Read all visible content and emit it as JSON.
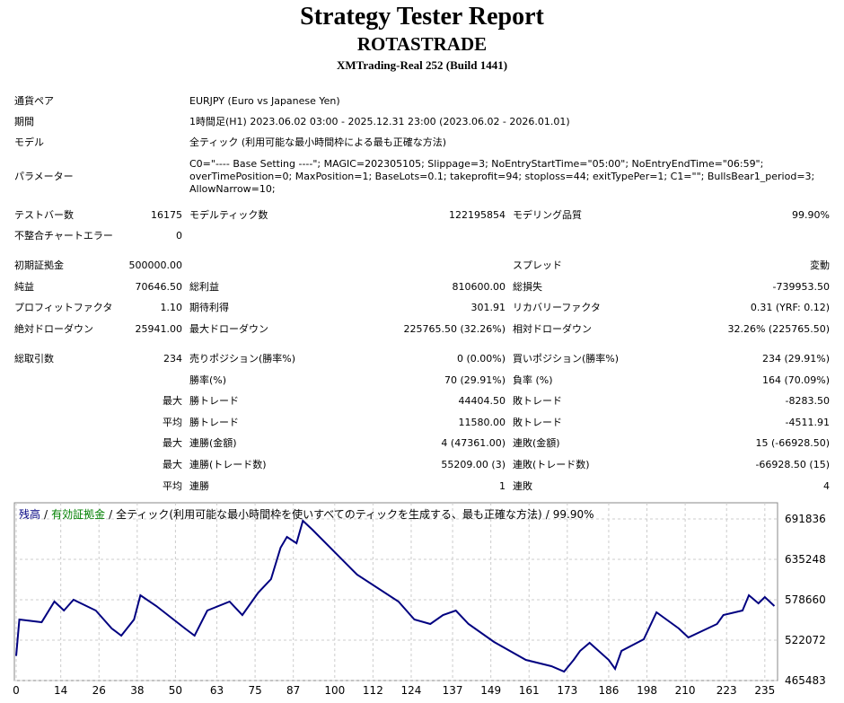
{
  "header": {
    "title": "Strategy Tester Report",
    "name": "ROTASTRADE",
    "server": "XMTrading-Real 252 (Build 1441)"
  },
  "info": [
    [
      "通貨ペア",
      [
        "EURJPY (Euro vs Japanese Yen)"
      ]
    ],
    [
      "期間",
      [
        "1時間足(H1) 2023.06.02 03:00 - 2025.12.31 23:00 (2023.06.02 - 2026.01.01)"
      ]
    ],
    [
      "モデル",
      [
        "全ティック (利用可能な最小時間枠による最も正確な方法)"
      ]
    ],
    [
      "パラメーター",
      [
        "C0=\"---- Base Setting ----\"; MAGIC=202305105; Slippage=3; NoEntryStartTime=\"05:00\"; NoEntryEndTime=\"06:59\";",
        "overTimePosition=0; MaxPosition=1; BaseLots=0.1; takeprofit=94; stoploss=44; exitTypePer=1; C1=\"\"; BullsBear1_period=3;",
        "AllowNarrow=10;"
      ]
    ]
  ],
  "table": {
    "rows": [
      [
        "テストバー数",
        "16175",
        "モデルティック数",
        "122195854",
        "モデリング品質",
        "99.90%"
      ],
      [
        "不整合チャートエラー",
        "0",
        null,
        null,
        null,
        null
      ],
      [
        "初期証拠金",
        "500000.00",
        null,
        null,
        "スプレッド",
        "変動"
      ],
      [
        "純益",
        "70646.50",
        "総利益",
        "810600.00",
        "総損失",
        "-739953.50"
      ],
      [
        "プロフィットファクタ",
        "1.10",
        "期待利得",
        "301.91",
        "リカバリーファクタ",
        "0.31 (YRF: 0.12)"
      ],
      [
        "絶対ドローダウン",
        "25941.00",
        "最大ドローダウン",
        "225765.50 (32.26%)",
        "相対ドローダウン",
        "32.26% (225765.50)"
      ],
      [
        "総取引数",
        "234",
        "売りポジション(勝率%)",
        "0 (0.00%)",
        "買いポジション(勝率%)",
        "234 (29.91%)"
      ],
      [
        null,
        null,
        "勝率(%)",
        "70 (29.91%)",
        "負率 (%)",
        "164 (70.09%)"
      ],
      [
        null,
        "最大",
        "勝トレード",
        "44404.50",
        "敗トレード",
        "-8283.50"
      ],
      [
        null,
        "平均",
        "勝トレード",
        "11580.00",
        "敗トレード",
        "-4511.91"
      ],
      [
        null,
        "最大",
        "連勝(金額)",
        "4 (47361.00)",
        "連敗(金額)",
        "15 (-66928.50)"
      ],
      [
        null,
        "最大",
        "連勝(トレード数)",
        "55209.00 (3)",
        "連敗(トレード数)",
        "-66928.50 (15)"
      ],
      [
        null,
        "平均",
        "連勝",
        "1",
        "連敗",
        "4"
      ]
    ]
  },
  "chart_data": {
    "type": "line",
    "separator": "/",
    "model": "全ティック(利用可能な最小時間枠を使いすべてのティックを生成する、最も正確な方法)",
    "quality": "99.90%",
    "equity_legend": {
      "name": "有効証拠金",
      "color": "#008000"
    },
    "x": [
      0,
      1,
      8,
      12,
      15,
      18,
      25,
      30,
      33,
      37,
      39,
      44,
      53,
      56,
      60,
      67,
      71,
      76,
      80,
      83,
      85,
      88,
      90,
      93,
      107,
      120,
      125,
      130,
      134,
      138,
      142,
      150,
      160,
      168,
      172,
      175,
      177,
      180,
      186,
      188,
      190,
      197,
      201,
      208,
      211,
      220,
      222,
      228,
      230,
      233,
      235,
      238
    ],
    "series": [
      {
        "name": "残高",
        "color": "#000080",
        "values": [
          500000,
          550993,
          547221,
          576143,
          563568,
          578658,
          563568,
          538418,
          528358,
          550993,
          584946,
          569856,
          538418,
          528358,
          563568,
          576143,
          557281,
          588718,
          607581,
          651593,
          666683,
          657881,
          689318,
          676743,
          613868,
          576143,
          550993,
          544706,
          557281,
          563568,
          544706,
          519556,
          494406,
          485603,
          478058,
          494406,
          506981,
          518298,
          494406,
          481831,
          506981,
          523328,
          561053,
          538418,
          525843,
          544706,
          557281,
          563568,
          584946,
          573628,
          582431,
          569856
        ]
      }
    ],
    "xlim": [
      0,
      239
    ],
    "ylim": [
      465483,
      714471
    ],
    "xticks": [
      0,
      14,
      26,
      38,
      50,
      63,
      75,
      87,
      100,
      112,
      124,
      137,
      149,
      161,
      173,
      186,
      198,
      210,
      223,
      235
    ],
    "yticks": [
      465483,
      522072,
      578660,
      635248,
      691836
    ],
    "grid": true
  }
}
